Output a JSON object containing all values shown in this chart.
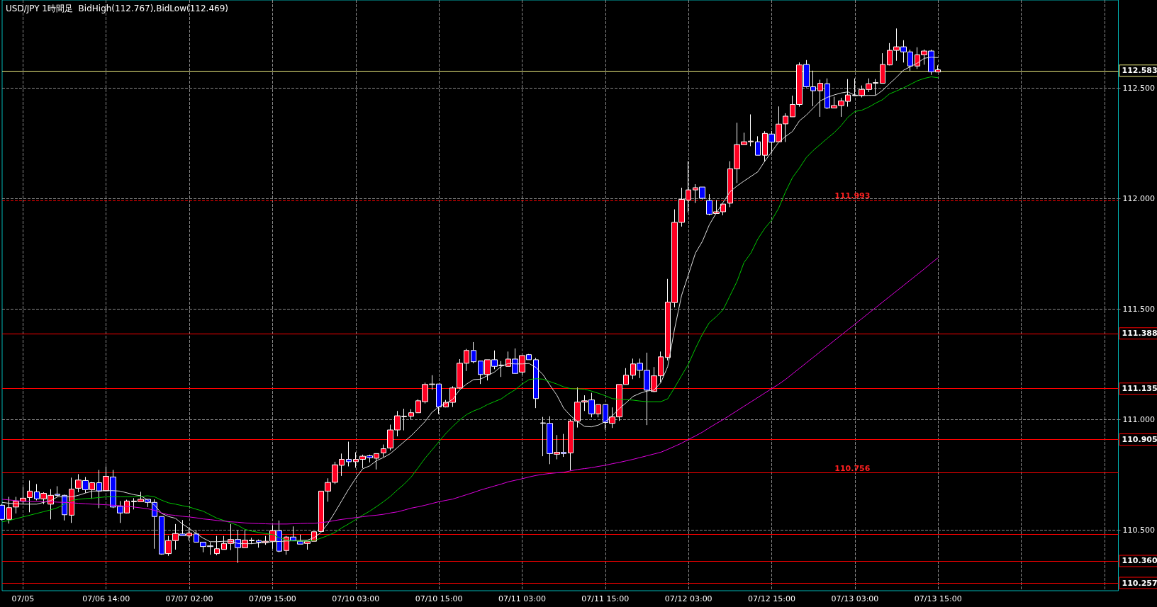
{
  "chart_data": {
    "type": "candlestick",
    "title": "USD/JPY 1時間足  BidHigh(112.767),BidLow(112.469)",
    "categories": [
      null,
      null,
      null,
      "07/05",
      null,
      null,
      null,
      null,
      null,
      null,
      null,
      null,
      null,
      null,
      null,
      "07/06 14:00",
      null,
      null,
      null,
      null,
      null,
      null,
      null,
      null,
      null,
      null,
      null,
      "07/07 02:00",
      null,
      null,
      null,
      null,
      null,
      null,
      null,
      null,
      null,
      null,
      null,
      "07/09 15:00",
      null,
      null,
      null,
      null,
      null,
      null,
      null,
      null,
      null,
      null,
      null,
      "07/10 03:00",
      null,
      null,
      null,
      null,
      null,
      null,
      null,
      null,
      null,
      null,
      null,
      "07/10 15:00",
      null,
      null,
      null,
      null,
      null,
      null,
      null,
      null,
      null,
      null,
      null,
      "07/11 03:00",
      null,
      null,
      null,
      null,
      null,
      null,
      null,
      null,
      null,
      null,
      null,
      "07/11 15:00",
      null,
      null,
      null,
      null,
      null,
      null,
      null,
      null,
      null,
      null,
      null,
      "07/12 03:00",
      null,
      null,
      null,
      null,
      null,
      null,
      null,
      null,
      null,
      null,
      null,
      "07/12 15:00",
      null,
      null,
      null,
      null,
      null,
      null,
      null,
      null,
      null,
      null,
      null,
      "07/13 03:00",
      null,
      null,
      null,
      null,
      null,
      null,
      null,
      null,
      null,
      null,
      null,
      "07/13 15:00",
      null,
      null,
      null,
      null,
      null,
      null,
      null,
      null,
      null,
      null,
      null,
      null,
      null,
      null,
      null,
      null,
      null,
      null,
      null,
      null,
      null,
      null,
      null,
      null,
      null,
      null
    ],
    "ohlc": [
      [
        110.612,
        110.617,
        110.543,
        110.548
      ],
      [
        110.548,
        110.65,
        110.529,
        110.601
      ],
      [
        110.604,
        110.65,
        110.575,
        110.63
      ],
      [
        110.63,
        110.694,
        110.617,
        110.644
      ],
      [
        110.647,
        110.724,
        110.58,
        110.676
      ],
      [
        110.673,
        110.708,
        110.634,
        110.641
      ],
      [
        110.641,
        110.671,
        110.617,
        110.666
      ],
      [
        110.617,
        110.685,
        110.548,
        110.657
      ],
      [
        110.662,
        110.698,
        110.65,
        110.657
      ],
      [
        110.657,
        110.66,
        110.543,
        110.569
      ],
      [
        110.567,
        110.737,
        110.532,
        110.685
      ],
      [
        110.689,
        110.753,
        110.671,
        110.726
      ],
      [
        110.724,
        110.74,
        110.668,
        110.682
      ],
      [
        110.682,
        110.717,
        110.641,
        110.714
      ],
      [
        110.714,
        110.772,
        110.599,
        110.676
      ],
      [
        110.678,
        110.788,
        110.676,
        110.743
      ],
      [
        110.74,
        110.772,
        110.599,
        110.604
      ],
      [
        110.607,
        110.631,
        110.532,
        110.577
      ],
      [
        110.577,
        110.637,
        110.575,
        110.631
      ],
      [
        110.628,
        110.644,
        110.593,
        110.631
      ],
      [
        110.628,
        110.673,
        110.628,
        110.639
      ],
      [
        110.639,
        110.639,
        110.604,
        110.625
      ],
      [
        110.625,
        110.639,
        110.415,
        110.561
      ],
      [
        110.561,
        110.561,
        110.388,
        110.391
      ],
      [
        110.393,
        110.473,
        110.383,
        110.452
      ],
      [
        110.452,
        110.527,
        110.411,
        110.484
      ],
      [
        110.482,
        110.545,
        110.474,
        110.474
      ],
      [
        110.473,
        110.507,
        110.452,
        110.486
      ],
      [
        110.482,
        110.5,
        110.445,
        110.445
      ],
      [
        110.445,
        110.445,
        110.399,
        110.425
      ],
      [
        110.428,
        110.445,
        110.388,
        110.425
      ],
      [
        110.393,
        110.473,
        110.386,
        110.415
      ],
      [
        110.412,
        110.473,
        110.412,
        110.439
      ],
      [
        110.439,
        110.527,
        110.409,
        110.457
      ],
      [
        110.457,
        110.5,
        110.351,
        110.42
      ],
      [
        110.42,
        110.5,
        110.42,
        110.454
      ],
      [
        110.451,
        110.465,
        110.436,
        110.454
      ],
      [
        110.452,
        110.457,
        110.42,
        110.445
      ],
      [
        110.443,
        110.473,
        110.433,
        110.449
      ],
      [
        110.449,
        110.521,
        110.415,
        110.497
      ],
      [
        110.497,
        110.543,
        110.399,
        110.404
      ],
      [
        110.407,
        110.473,
        110.388,
        110.468
      ],
      [
        110.468,
        110.516,
        110.452,
        110.452
      ],
      [
        110.449,
        110.479,
        110.436,
        110.436
      ],
      [
        110.439,
        110.449,
        110.411,
        110.449
      ],
      [
        110.449,
        110.492,
        110.449,
        110.492
      ],
      [
        110.493,
        110.676,
        110.493,
        110.676
      ],
      [
        110.676,
        110.734,
        110.628,
        110.715
      ],
      [
        110.716,
        110.809,
        110.708,
        110.795
      ],
      [
        110.793,
        110.846,
        110.745,
        110.82
      ],
      [
        110.82,
        110.9,
        110.788,
        110.809
      ],
      [
        110.809,
        110.852,
        110.782,
        110.82
      ],
      [
        110.82,
        110.841,
        110.78,
        110.834
      ],
      [
        110.836,
        110.841,
        110.806,
        110.827
      ],
      [
        110.825,
        110.846,
        110.774,
        110.846
      ],
      [
        110.849,
        110.887,
        110.831,
        110.868
      ],
      [
        110.871,
        110.977,
        110.86,
        110.953
      ],
      [
        110.953,
        111.039,
        110.924,
        111.017
      ],
      [
        111.013,
        111.049,
        110.951,
        111.015
      ],
      [
        111.015,
        111.047,
        110.999,
        111.031
      ],
      [
        111.031,
        111.092,
        111.031,
        111.085
      ],
      [
        111.081,
        111.167,
        111.073,
        111.159
      ],
      [
        111.159,
        111.201,
        111.135,
        111.161
      ],
      [
        111.161,
        111.161,
        111.025,
        111.057
      ],
      [
        111.057,
        111.089,
        111.055,
        111.078
      ],
      [
        111.078,
        111.151,
        111.057,
        111.143
      ],
      [
        111.143,
        111.274,
        111.14,
        111.255
      ],
      [
        111.255,
        111.32,
        111.22,
        111.313
      ],
      [
        111.313,
        111.351,
        111.255,
        111.262
      ],
      [
        111.265,
        111.265,
        111.161,
        111.204
      ],
      [
        111.204,
        111.271,
        111.177,
        111.271
      ],
      [
        111.271,
        111.313,
        111.228,
        111.241
      ],
      [
        111.247,
        111.265,
        111.193,
        111.244
      ],
      [
        111.241,
        111.308,
        111.241,
        111.274
      ],
      [
        111.274,
        111.322,
        111.207,
        111.209
      ],
      [
        111.215,
        111.29,
        111.201,
        111.29
      ],
      [
        111.294,
        111.297,
        111.271,
        111.271
      ],
      [
        111.271,
        111.279,
        111.052,
        111.095
      ],
      [
        110.985,
        111.012,
        110.834,
        110.983
      ],
      [
        110.983,
        111.015,
        110.798,
        110.846
      ],
      [
        110.843,
        110.93,
        110.82,
        110.852
      ],
      [
        110.852,
        110.935,
        110.831,
        110.846
      ],
      [
        110.849,
        111.001,
        110.77,
        110.993
      ],
      [
        110.993,
        111.145,
        110.964,
        111.079
      ],
      [
        111.079,
        111.11,
        111.039,
        111.085
      ],
      [
        111.089,
        111.121,
        111.01,
        111.026
      ],
      [
        111.026,
        111.068,
        111.01,
        111.068
      ],
      [
        111.068,
        111.068,
        110.955,
        110.987
      ],
      [
        110.983,
        111.055,
        110.962,
        111.012
      ],
      [
        111.012,
        111.159,
        110.994,
        111.159
      ],
      [
        111.159,
        111.233,
        111.159,
        111.201
      ],
      [
        111.201,
        111.276,
        111.183,
        111.252
      ],
      [
        111.255,
        111.276,
        111.188,
        111.223
      ],
      [
        111.223,
        111.303,
        110.975,
        111.133
      ],
      [
        111.127,
        111.238,
        111.124,
        111.198
      ],
      [
        111.198,
        111.308,
        111.169,
        111.284
      ],
      [
        111.281,
        111.637,
        111.268,
        111.532
      ],
      [
        111.53,
        111.952,
        111.508,
        111.893
      ],
      [
        111.893,
        112.05,
        111.874,
        111.997
      ],
      [
        111.994,
        112.17,
        111.938,
        112.04
      ],
      [
        112.04,
        112.066,
        111.981,
        112.05
      ],
      [
        112.053,
        112.053,
        111.997,
        112.002
      ],
      [
        111.992,
        112.021,
        111.925,
        111.93
      ],
      [
        111.933,
        111.994,
        111.933,
        111.941
      ],
      [
        111.941,
        111.976,
        111.925,
        111.976
      ],
      [
        111.98,
        112.17,
        111.962,
        112.136
      ],
      [
        112.136,
        112.344,
        112.071,
        112.245
      ],
      [
        112.245,
        112.299,
        112.245,
        112.258
      ],
      [
        112.258,
        112.382,
        112.238,
        112.261
      ],
      [
        112.258,
        112.283,
        112.197,
        112.197
      ],
      [
        112.197,
        112.306,
        112.168,
        112.296
      ],
      [
        112.293,
        112.307,
        112.208,
        112.256
      ],
      [
        112.258,
        112.418,
        112.258,
        112.338
      ],
      [
        112.339,
        112.387,
        112.257,
        112.374
      ],
      [
        112.371,
        112.467,
        112.371,
        112.427
      ],
      [
        112.427,
        112.617,
        112.417,
        112.606
      ],
      [
        112.608,
        112.628,
        112.504,
        112.507
      ],
      [
        112.507,
        112.58,
        112.419,
        112.489
      ],
      [
        112.489,
        112.539,
        112.371,
        112.523
      ],
      [
        112.521,
        112.545,
        112.406,
        112.411
      ],
      [
        112.411,
        112.462,
        112.411,
        112.422
      ],
      [
        112.422,
        112.457,
        112.371,
        112.443
      ],
      [
        112.441,
        112.542,
        112.417,
        112.47
      ],
      [
        112.469,
        112.545,
        112.465,
        112.467
      ],
      [
        112.468,
        112.513,
        112.459,
        112.495
      ],
      [
        112.495,
        112.545,
        112.483,
        112.521
      ],
      [
        112.523,
        112.542,
        112.47,
        112.526
      ],
      [
        112.523,
        112.659,
        112.523,
        112.608
      ],
      [
        112.606,
        112.705,
        112.604,
        112.672
      ],
      [
        112.672,
        112.771,
        112.625,
        112.688
      ],
      [
        112.688,
        112.718,
        112.617,
        112.665
      ],
      [
        112.665,
        112.675,
        112.579,
        112.601
      ],
      [
        112.601,
        112.686,
        112.588,
        112.652
      ],
      [
        112.652,
        112.676,
        112.607,
        112.669
      ],
      [
        112.669,
        112.675,
        112.561,
        112.575
      ],
      [
        112.574,
        112.604,
        112.574,
        112.584
      ],
      null,
      null,
      null,
      null,
      null,
      null,
      null,
      null,
      null,
      null,
      null,
      null,
      null,
      null,
      null,
      null,
      null,
      null,
      null,
      null,
      null,
      null,
      null,
      null,
      null,
      null
    ],
    "colors": [
      "#0000ff",
      "#ff0022",
      "#ff0022",
      "#ff0022",
      "#ff0022",
      "#0000ff",
      "#ff0022",
      "#ff0022",
      "#0000ff",
      "#0000ff",
      "#ff0022",
      "#ff0022",
      "#0000ff",
      "#ff0022",
      "#0000ff",
      "#ff0022",
      "#0000ff",
      "#0000ff",
      "#ff0022",
      "#ff0022",
      "#ff0022",
      "#0000ff",
      "#0000ff",
      "#0000ff",
      "#ff0022",
      "#ff0022",
      "#0000ff",
      "#ff0022",
      "#0000ff",
      "#0000ff",
      "#0000ff",
      "#ff0022",
      "#ff0022",
      "#ff0022",
      "#0000ff",
      "#ff0022",
      "#ff0022",
      "#0000ff",
      "#ff0022",
      "#ff0022",
      "#0000ff",
      "#ff0022",
      "#0000ff",
      "#0000ff",
      "#ff0022",
      "#ff0022",
      "#ff0022",
      "#ff0022",
      "#ff0022",
      "#ff0022",
      "#0000ff",
      "#ff0022",
      "#ff0022",
      "#0000ff",
      "#ff0022",
      "#ff0022",
      "#ff0022",
      "#ff0022",
      "#ff0022",
      "#ff0022",
      "#ff0022",
      "#ff0022",
      "#ff0022",
      "#0000ff",
      "#ff0022",
      "#ff0022",
      "#ff0022",
      "#ff0022",
      "#0000ff",
      "#0000ff",
      "#ff0022",
      "#0000ff",
      "#0000ff",
      "#ff0022",
      "#0000ff",
      "#ff0022",
      "#0000ff",
      "#0000ff",
      "#0000ff",
      "#0000ff",
      "#ff0022",
      "#0000ff",
      "#ff0022",
      "#ff0022",
      "#ff0022",
      "#0000ff",
      "#ff0022",
      "#0000ff",
      "#ff0022",
      "#ff0022",
      "#ff0022",
      "#ff0022",
      "#0000ff",
      "#0000ff",
      "#ff0022",
      "#ff0022",
      "#ff0022",
      "#ff0022",
      "#ff0022",
      "#ff0022",
      "#ff0022",
      "#0000ff",
      "#0000ff",
      "#ff0022",
      "#ff0022",
      "#ff0022",
      "#ff0022",
      "#ff0022",
      "#ff0022",
      "#0000ff",
      "#ff0022",
      "#0000ff",
      "#ff0022",
      "#ff0022",
      "#ff0022",
      "#ff0022",
      "#0000ff",
      "#0000ff",
      "#ff0022",
      "#0000ff",
      "#ff0022",
      "#ff0022",
      "#ff0022",
      "#0000ff",
      "#ff0022",
      "#ff0022",
      "#ff0022",
      "#ff0022",
      "#ff0022",
      "#ff0022",
      "#0000ff",
      "#0000ff",
      "#ff0022",
      "#ff0022",
      "#0000ff",
      "#ff0022",
      null,
      null,
      null,
      null,
      null,
      null,
      null,
      null,
      null,
      null,
      null,
      null,
      null,
      null,
      null,
      null,
      null,
      null,
      null,
      null,
      null,
      null,
      null,
      null,
      null,
      null
    ],
    "series": [
      {
        "type": "line",
        "color": "#e0e0e0",
        "values": [
          110.625,
          110.621,
          110.619,
          110.617,
          110.617,
          110.617,
          110.625,
          110.633,
          110.65,
          110.65,
          110.65,
          110.657,
          110.667,
          110.676,
          110.677,
          110.678,
          110.678,
          110.676,
          110.668,
          110.66,
          110.655,
          110.635,
          110.612,
          110.575,
          110.561,
          110.553,
          110.527,
          110.507,
          110.484,
          110.463,
          110.447,
          110.447,
          110.449,
          110.449,
          110.439,
          110.438,
          110.438,
          110.441,
          110.443,
          110.447,
          110.448,
          110.45,
          110.451,
          110.453,
          110.454,
          110.465,
          110.489,
          110.53,
          110.58,
          110.633,
          110.686,
          110.734,
          110.777,
          110.79,
          110.814,
          110.828,
          110.846,
          110.873,
          110.9,
          110.927,
          110.959,
          110.991,
          111.033,
          111.058,
          111.073,
          111.092,
          111.135,
          111.161,
          111.181,
          111.183,
          111.199,
          111.215,
          111.241,
          111.254,
          111.252,
          111.252,
          111.254,
          111.236,
          111.204,
          111.156,
          111.111,
          111.051,
          111.017,
          110.991,
          110.969,
          110.967,
          110.975,
          110.991,
          111.017,
          111.049,
          111.076,
          111.105,
          111.119,
          111.129,
          111.133,
          111.167,
          111.24,
          111.412,
          111.562,
          111.658,
          111.754,
          111.807,
          111.882,
          111.935,
          111.984,
          112.032,
          112.058,
          112.08,
          112.101,
          112.122,
          112.17,
          112.213,
          112.256,
          112.282,
          112.305,
          112.353,
          112.379,
          112.411,
          112.443,
          112.459,
          112.47,
          112.479,
          112.484,
          112.468,
          112.467,
          112.468,
          112.468,
          112.491,
          112.521,
          112.55,
          112.582,
          112.598,
          112.614,
          112.636,
          112.641,
          112.639,
          null,
          null,
          null,
          null,
          null,
          null,
          null,
          null,
          null,
          null,
          null,
          null,
          null,
          null,
          null,
          null,
          null,
          null,
          null,
          null,
          null,
          null,
          null,
          null,
          null,
          null
        ]
      },
      {
        "type": "line",
        "color": "#00c800",
        "values": [
          110.537,
          110.543,
          110.551,
          110.559,
          110.567,
          110.575,
          110.583,
          110.591,
          110.601,
          110.617,
          110.633,
          110.639,
          110.642,
          110.644,
          110.647,
          110.65,
          110.65,
          110.65,
          110.65,
          110.651,
          110.652,
          110.655,
          110.65,
          110.635,
          110.623,
          110.617,
          110.61,
          110.604,
          110.594,
          110.585,
          110.569,
          110.553,
          110.543,
          110.532,
          110.521,
          110.503,
          110.495,
          110.489,
          110.484,
          110.479,
          110.465,
          110.454,
          110.45,
          110.45,
          110.45,
          110.452,
          110.463,
          110.475,
          110.489,
          110.51,
          110.528,
          110.547,
          110.567,
          110.585,
          110.606,
          110.628,
          110.652,
          110.681,
          110.708,
          110.74,
          110.782,
          110.825,
          110.862,
          110.9,
          110.937,
          110.969,
          110.998,
          111.023,
          111.039,
          111.051,
          111.068,
          111.081,
          111.094,
          111.116,
          111.135,
          111.161,
          111.181,
          111.185,
          111.183,
          111.172,
          111.161,
          111.148,
          111.14,
          111.139,
          111.138,
          111.129,
          111.119,
          111.108,
          111.095,
          111.092,
          111.09,
          111.088,
          111.084,
          111.081,
          111.081,
          111.081,
          111.094,
          111.145,
          111.199,
          111.252,
          111.322,
          111.386,
          111.439,
          111.466,
          111.498,
          111.562,
          111.626,
          111.711,
          111.754,
          111.818,
          111.866,
          111.903,
          111.957,
          112.032,
          112.096,
          112.139,
          112.187,
          112.219,
          112.246,
          112.273,
          112.299,
          112.331,
          112.369,
          112.395,
          112.401,
          112.415,
          112.433,
          112.449,
          112.475,
          112.488,
          112.502,
          112.518,
          112.534,
          112.545,
          112.552,
          112.548,
          null,
          null,
          null,
          null,
          null,
          null,
          null,
          null,
          null,
          null,
          null,
          null,
          null,
          null,
          null,
          null,
          null,
          null,
          null,
          null,
          null,
          null,
          null,
          null,
          null,
          null
        ]
      },
      {
        "type": "line",
        "color": "#e000e0",
        "values": [
          110.639,
          110.636,
          110.633,
          110.63,
          110.629,
          110.628,
          110.628,
          110.628,
          110.626,
          110.625,
          110.623,
          110.621,
          110.619,
          110.617,
          110.616,
          110.614,
          110.612,
          110.61,
          110.607,
          110.604,
          110.6,
          110.596,
          110.589,
          110.577,
          110.569,
          110.566,
          110.562,
          110.559,
          110.555,
          110.55,
          110.547,
          110.543,
          110.54,
          110.537,
          110.535,
          110.532,
          110.53,
          110.529,
          110.528,
          110.527,
          110.527,
          110.527,
          110.528,
          110.529,
          110.53,
          110.53,
          110.534,
          110.537,
          110.543,
          110.548,
          110.552,
          110.556,
          110.56,
          110.564,
          110.567,
          110.571,
          110.577,
          110.582,
          110.59,
          110.599,
          110.605,
          110.612,
          110.62,
          110.628,
          110.634,
          110.64,
          110.65,
          110.66,
          110.67,
          110.681,
          110.69,
          110.699,
          110.708,
          110.718,
          110.725,
          110.732,
          110.74,
          110.747,
          110.752,
          110.756,
          110.759,
          110.761,
          110.768,
          110.774,
          110.778,
          110.782,
          110.788,
          110.793,
          110.8,
          110.806,
          110.813,
          110.82,
          110.828,
          110.836,
          110.844,
          110.852,
          110.865,
          110.879,
          110.893,
          110.91,
          110.926,
          110.943,
          110.963,
          110.982,
          111.0,
          111.02,
          111.04,
          111.06,
          111.08,
          111.1,
          111.12,
          111.14,
          111.16,
          111.182,
          111.207,
          111.232,
          111.257,
          111.282,
          111.307,
          111.332,
          111.357,
          111.382,
          111.407,
          111.432,
          111.457,
          111.482,
          111.507,
          111.532,
          111.557,
          111.582,
          111.607,
          111.632,
          111.657,
          111.682,
          111.708,
          111.733,
          null,
          null,
          null,
          null,
          null,
          null,
          null,
          null,
          null,
          null,
          null,
          null,
          null,
          null,
          null,
          null,
          null,
          null,
          null,
          null,
          null,
          null,
          null,
          null,
          null,
          null
        ]
      }
    ],
    "ylim": [
      110.225,
      112.9
    ],
    "yticks": [
      {
        "value": 110.5,
        "label": "110.500"
      },
      {
        "value": 111,
        "label": "111.000"
      },
      {
        "value": 111.5,
        "label": "111.500"
      },
      {
        "value": 112,
        "label": "112.000"
      },
      {
        "value": 112.5,
        "label": "112.500"
      }
    ],
    "grid": true,
    "ref_lines": [
      {
        "axis": "y",
        "value": 112.583,
        "label": "112.583",
        "color": "#f0f080"
      },
      {
        "axis": "y",
        "value": 111.993,
        "color": "#ff0000",
        "line_style": "dashed"
      },
      {
        "axis": "y",
        "value": 111.388,
        "label": "111.388",
        "color": "#ff0000"
      },
      {
        "axis": "y",
        "value": 111.135,
        "label": "111.135",
        "color": "#ff0000"
      },
      {
        "axis": "y",
        "value": 110.905,
        "label": "110.905",
        "color": "#ff0000"
      },
      {
        "axis": "y",
        "value": 110.756,
        "color": "#ff0000"
      },
      {
        "axis": "y",
        "value": 110.484,
        "color": "#ff0000"
      },
      {
        "axis": "y",
        "value": 110.36,
        "label": "110.360",
        "color": "#ff0000"
      },
      {
        "axis": "y",
        "value": 110.257,
        "label": "110.257",
        "color": "#ff0000"
      }
    ],
    "annotations": [
      {
        "text": "111.993",
        "y": 111.993
      },
      {
        "text": "110.756",
        "y": 110.756
      }
    ]
  }
}
